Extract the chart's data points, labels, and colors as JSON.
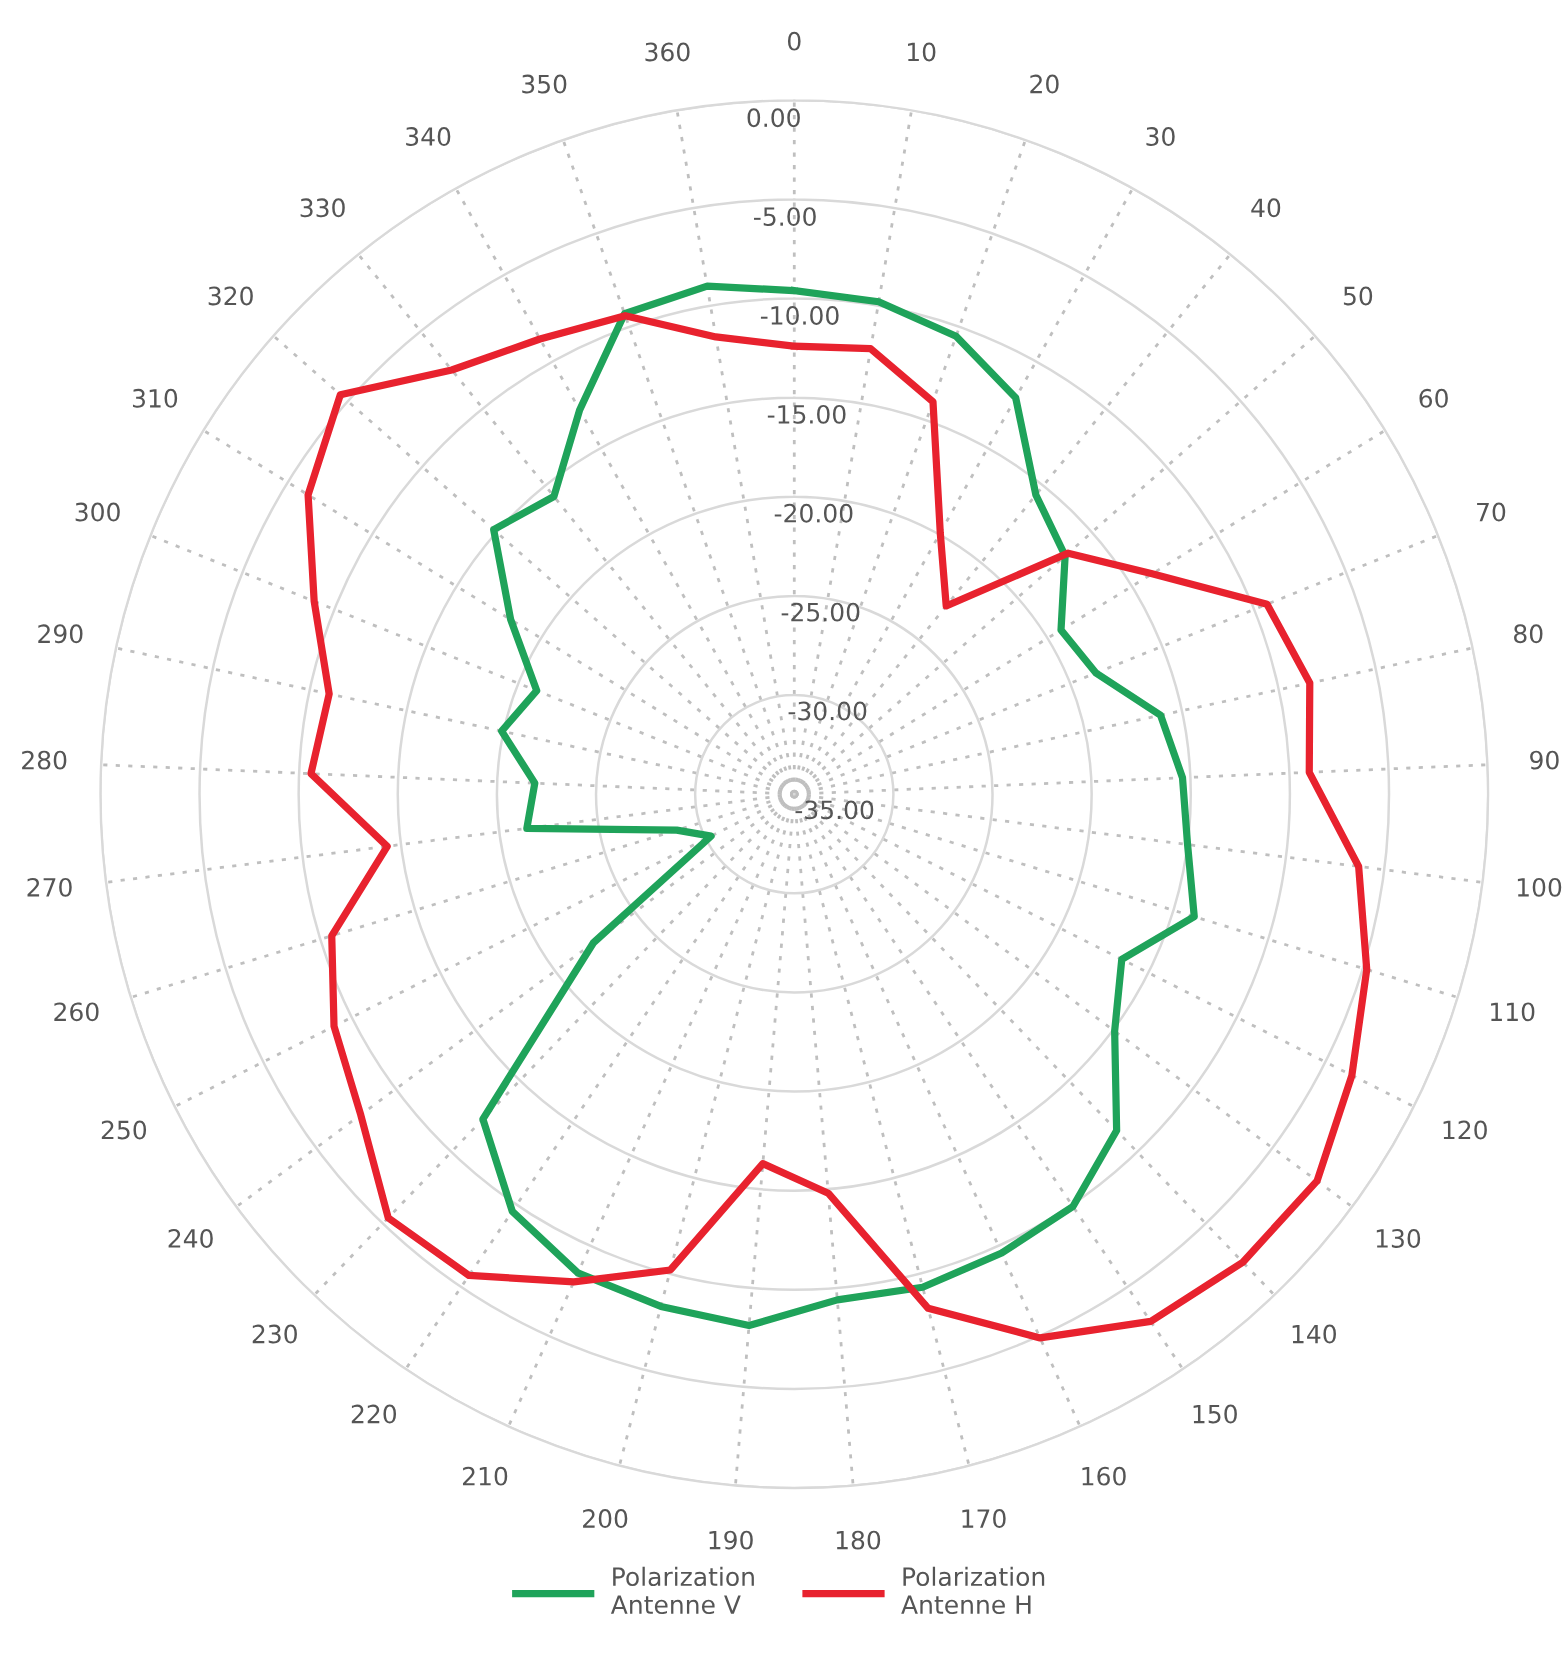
{
  "chart_data": {
    "type": "radar",
    "categories": [
      "0",
      "10",
      "20",
      "30",
      "40",
      "50",
      "60",
      "70",
      "80",
      "90",
      "100",
      "110",
      "120",
      "130",
      "140",
      "150",
      "160",
      "170",
      "180",
      "190",
      "200",
      "210",
      "220",
      "230",
      "240",
      "250",
      "260",
      "270",
      "280",
      "290",
      "300",
      "310",
      "320",
      "330",
      "340",
      "350",
      "360"
    ],
    "series": [
      {
        "name": "Polarization\nAntenne V",
        "color": "#1fa35a",
        "values": [
          -9.6,
          -9.8,
          -10.5,
          -12.1,
          -15.6,
          -16.8,
          -19.2,
          -18.6,
          -16.1,
          -15.4,
          -15.0,
          -13.9,
          -16.5,
          -14.9,
          -11.5,
          -9.9,
          -9.6,
          -9.3,
          -9.4,
          -8.1,
          -8.3,
          -8.5,
          -9.6,
          -12.3,
          -22.4,
          -30.3,
          -28.8,
          -21.4,
          -21.9,
          -19.9,
          -21.0,
          -18.2,
          -14.8,
          -15.7,
          -12.8,
          -9.3,
          -9.0
        ]
      },
      {
        "name": "Polarization\nAntenne H",
        "color": "#e8222e",
        "values": [
          -12.4,
          -12.2,
          -14.0,
          -19.9,
          -22.8,
          -16.6,
          -13.8,
          -9.3,
          -8.4,
          -9.0,
          -6.3,
          -4.8,
          -3.5,
          -2.2,
          -2.3,
          -2.9,
          -4.9,
          -8.2,
          -14.8,
          -16.3,
          -10.2,
          -8.0,
          -5.7,
          -5.4,
          -7.8,
          -9.0,
          -10.6,
          -14.3,
          -10.6,
          -11.0,
          -8.9,
          -6.2,
          -4.5,
          -7.5,
          -8.7,
          -9.4,
          -11.6
        ]
      }
    ],
    "ylim": [
      -35,
      0
    ],
    "yticks": [
      {
        "value": -35,
        "label": "-35.00"
      },
      {
        "value": -30,
        "label": "-30.00"
      },
      {
        "value": -25,
        "label": "-25.00"
      },
      {
        "value": -20,
        "label": "-20.00"
      },
      {
        "value": -15,
        "label": "-15.00"
      },
      {
        "value": -10,
        "label": "-10.00"
      },
      {
        "value": -5,
        "label": "-5.00"
      },
      {
        "value": 0,
        "label": "0.00"
      }
    ],
    "grid": true,
    "legend": "bottom",
    "marker": "none",
    "line_style": "solid"
  }
}
